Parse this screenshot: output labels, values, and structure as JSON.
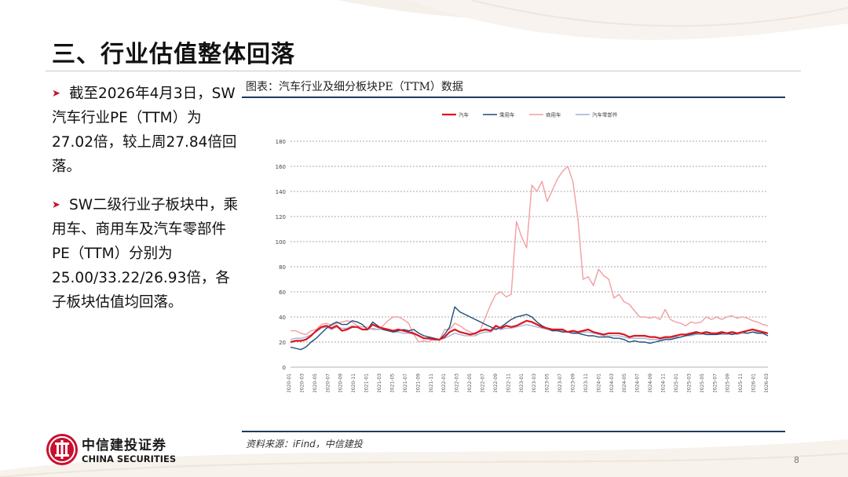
{
  "slide": {
    "title": "三、行业估值整体回落",
    "bullets": [
      "截至2026年4月3日，SW汽车行业PE（TTM）为27.02倍，较上周27.84倍回落。",
      "SW二级行业子板块中，乘用车、商用车及汽车零部件PE（TTM）分别为25.00/33.22/26.93倍，各子板块估值均回落。"
    ],
    "source": "资料来源：iFind，中信建投",
    "page_number": "8"
  },
  "logo": {
    "cn": "中信建投证券",
    "en": "CHINA SECURITIES"
  },
  "colors": {
    "brand_red": "#c8102e",
    "rule_navy": "#1f3a5f"
  },
  "chart_data": {
    "type": "line",
    "title": "图表：汽车行业及细分板块PE（TTM）数据",
    "ylim": [
      0,
      180
    ],
    "yticks": [
      "0",
      "20",
      "40",
      "60",
      "80",
      "100",
      "120",
      "140",
      "160",
      "180"
    ],
    "grid": true,
    "legend_position": "top",
    "x_tick_labels": [
      "2020-01",
      "2020-03",
      "2020-05",
      "2020-07",
      "2020-09",
      "2020-11",
      "2021-01",
      "2021-03",
      "2021-05",
      "2021-07",
      "2021-09",
      "2021-11",
      "2022-01",
      "2022-03",
      "2022-05",
      "2022-07",
      "2022-09",
      "2022-11",
      "2023-01",
      "2023-03",
      "2023-05",
      "2023-07",
      "2023-09",
      "2023-11",
      "2024-01",
      "2024-03",
      "2024-05",
      "2024-07",
      "2024-09",
      "2024-11",
      "2025-01",
      "2025-03",
      "2025-05",
      "2025-07",
      "2025-09",
      "2025-11",
      "2026-01",
      "2026-03"
    ],
    "series": [
      {
        "name": "汽车",
        "color": "#e0141e",
        "width": 2.2,
        "values": [
          20,
          21,
          21,
          22,
          25,
          29,
          32,
          33,
          31,
          33,
          29,
          30,
          32,
          32,
          30,
          30,
          34,
          32,
          31,
          30,
          29,
          30,
          29,
          28,
          27,
          25,
          23,
          23,
          22,
          22,
          24,
          28,
          30,
          28,
          27,
          26,
          27,
          29,
          30,
          29,
          33,
          31,
          33,
          32,
          33,
          35,
          37,
          36,
          34,
          32,
          31,
          30,
          30,
          30,
          28,
          29,
          28,
          29,
          30,
          28,
          27,
          26,
          27,
          27,
          27,
          26,
          24,
          25,
          25,
          25,
          24,
          24,
          23,
          24,
          24,
          25,
          26,
          26,
          27,
          28,
          27,
          28,
          27,
          27,
          28,
          27,
          28,
          27,
          28,
          29,
          30,
          29,
          28,
          27
        ]
      },
      {
        "name": "乘用车",
        "color": "#1f4e79",
        "width": 1.4,
        "values": [
          16,
          15,
          14,
          16,
          20,
          23,
          27,
          31,
          34,
          36,
          34,
          34,
          37,
          36,
          34,
          30,
          36,
          33,
          30,
          29,
          28,
          29,
          30,
          29,
          30,
          27,
          25,
          24,
          23,
          22,
          26,
          32,
          48,
          44,
          42,
          40,
          38,
          36,
          34,
          32,
          30,
          32,
          35,
          38,
          40,
          41,
          42,
          40,
          36,
          33,
          31,
          29,
          29,
          28,
          28,
          27,
          27,
          26,
          25,
          25,
          24,
          24,
          24,
          23,
          23,
          22,
          20,
          21,
          20,
          20,
          19,
          20,
          21,
          22,
          22,
          23,
          24,
          25,
          26,
          27,
          27,
          26,
          26,
          26,
          27,
          27,
          26,
          27,
          28,
          27,
          28,
          27,
          27,
          25
        ]
      },
      {
        "name": "商用车",
        "color": "#f29ea2",
        "width": 1.4,
        "values": [
          29,
          29,
          27,
          26,
          29,
          30,
          34,
          35,
          33,
          35,
          36,
          37,
          36,
          33,
          32,
          32,
          30,
          30,
          33,
          37,
          40,
          40,
          38,
          35,
          26,
          20,
          21,
          20,
          23,
          21,
          30,
          30,
          35,
          33,
          30,
          28,
          26,
          30,
          40,
          50,
          58,
          60,
          56,
          58,
          116,
          104,
          95,
          145,
          140,
          148,
          132,
          141,
          150,
          156,
          160,
          148,
          118,
          70,
          72,
          65,
          78,
          73,
          70,
          55,
          58,
          52,
          50,
          45,
          40,
          40,
          39,
          40,
          38,
          46,
          38,
          36,
          35,
          33,
          36,
          35,
          36,
          40,
          38,
          40,
          38,
          40,
          41,
          39,
          40,
          39,
          37,
          36,
          34,
          33
        ]
      },
      {
        "name": "汽车零部件",
        "color": "#9bb3d6",
        "width": 1.3,
        "values": [
          22,
          23,
          23,
          24,
          26,
          28,
          31,
          32,
          30,
          32,
          31,
          31,
          33,
          32,
          30,
          30,
          31,
          30,
          30,
          29,
          28,
          28,
          27,
          27,
          26,
          25,
          23,
          22,
          22,
          22,
          23,
          25,
          27,
          26,
          25,
          25,
          25,
          27,
          28,
          28,
          31,
          30,
          31,
          31,
          32,
          33,
          34,
          33,
          32,
          31,
          30,
          29,
          29,
          29,
          28,
          28,
          27,
          28,
          28,
          27,
          26,
          25,
          25,
          25,
          25,
          24,
          23,
          23,
          23,
          23,
          22,
          22,
          22,
          23,
          23,
          24,
          24,
          25,
          25,
          26,
          26,
          27,
          26,
          26,
          26,
          26,
          27,
          26,
          27,
          27,
          28,
          28,
          27,
          27
        ]
      }
    ]
  }
}
